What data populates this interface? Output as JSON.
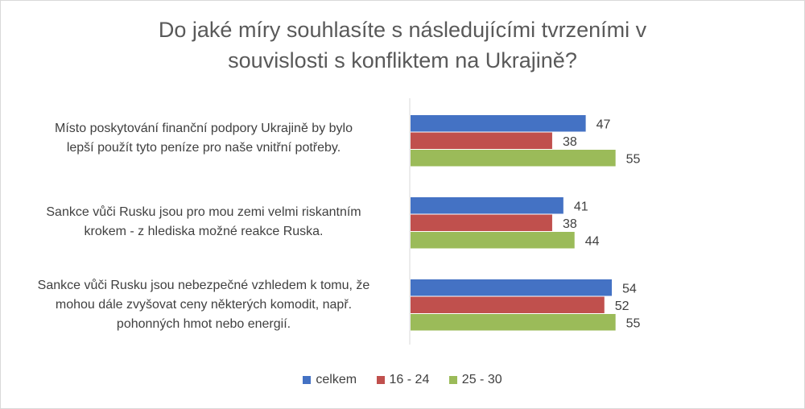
{
  "chart_data": {
    "type": "bar",
    "orientation": "horizontal",
    "title": "Do jaké míry souhlasíte s následujícími tvrzeními v souvislosti s konfliktem na Ukrajině?",
    "title_lines": [
      "Do jaké míry souhlasíte s následujícími tvrzeními v",
      "souvislosti s konfliktem na Ukrajině?"
    ],
    "categories": [
      {
        "lines": [
          "Místo poskytování finanční podpory Ukrajině by bylo",
          "lepší použít tyto peníze pro naše vnitřní potřeby."
        ]
      },
      {
        "lines": [
          "Sankce vůči Rusku jsou pro mou zemi velmi riskantním",
          "krokem - z hlediska možné reakce Ruska."
        ]
      },
      {
        "lines": [
          "Sankce vůči Rusku jsou nebezpečné vzhledem k tomu, že",
          "mohou dále zvyšovat ceny některých komodit, např.",
          "pohonných hmot nebo energií."
        ]
      }
    ],
    "series": [
      {
        "name": "celkem",
        "color": "#4472c4",
        "values": [
          47,
          41,
          54
        ]
      },
      {
        "name": "16 - 24",
        "color": "#c0504d",
        "values": [
          38,
          38,
          52
        ]
      },
      {
        "name": "25 - 30",
        "color": "#9bbb59",
        "values": [
          55,
          44,
          55
        ]
      }
    ],
    "xlim": [
      0,
      100
    ],
    "grid": false,
    "legend_position": "bottom"
  }
}
